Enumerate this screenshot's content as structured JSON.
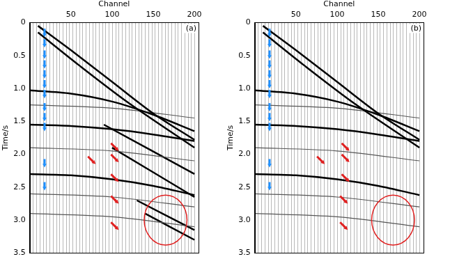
{
  "chart_data": [
    {
      "type": "line",
      "title": "(a)",
      "x_label": "Channel",
      "y_label": "Time/s",
      "xlim": [
        0,
        205
      ],
      "ylim": [
        0,
        3.5
      ],
      "xticks": [
        50,
        100,
        150,
        200
      ],
      "yticks": [
        0,
        {
          "value": 0.5,
          "label": "0.5"
        },
        {
          "value": 1,
          "label": "1.0"
        },
        {
          "value": 1.5,
          "label": "1.5"
        },
        {
          "value": 2,
          "label": "2.0"
        },
        {
          "value": 2.5,
          "label": "2.5"
        },
        {
          "value": 3,
          "label": "3.0"
        },
        {
          "value": 3.5,
          "label": "3.5"
        }
      ],
      "grid": false,
      "traces": [
        4,
        8,
        12,
        16,
        20,
        24,
        28,
        32,
        36,
        40,
        44,
        48,
        52,
        56,
        60,
        64,
        68,
        72,
        76,
        80,
        84,
        88,
        92,
        96,
        100,
        104,
        108,
        112,
        116,
        120,
        124,
        128,
        132,
        136,
        140,
        144,
        148,
        152,
        156,
        160,
        164,
        168,
        172,
        176,
        180,
        184,
        188,
        192,
        196,
        200
      ],
      "series": [
        {
          "color": "#000000",
          "x": [
            10,
            50,
            100,
            150,
            200
          ],
          "values": [
            0.05,
            0.42,
            0.9,
            1.38,
            1.78
          ]
        },
        {
          "color": "#000000",
          "x": [
            10,
            60,
            120,
            200
          ],
          "values": [
            0.15,
            0.65,
            1.22,
            1.9
          ]
        },
        {
          "color": "#000000",
          "x": [
            0,
            50,
            100,
            150,
            200
          ],
          "values": [
            1.03,
            1.08,
            1.2,
            1.4,
            1.65
          ]
        },
        {
          "color": "#000000",
          "x": [
            0,
            50,
            100,
            150,
            200
          ],
          "values": [
            1.55,
            1.57,
            1.62,
            1.7,
            1.8
          ]
        },
        {
          "color": "#000000",
          "x": [
            0,
            50,
            100,
            150,
            200
          ],
          "values": [
            2.3,
            2.32,
            2.38,
            2.48,
            2.62
          ]
        },
        {
          "color": "#555555",
          "x": [
            0,
            100,
            200
          ],
          "values": [
            1.25,
            1.3,
            1.45
          ]
        },
        {
          "color": "#555555",
          "x": [
            0,
            100,
            200
          ],
          "values": [
            1.9,
            1.95,
            2.1
          ]
        },
        {
          "color": "#555555",
          "x": [
            0,
            100,
            200
          ],
          "values": [
            2.6,
            2.65,
            2.8
          ]
        },
        {
          "color": "#555555",
          "x": [
            0,
            100,
            200
          ],
          "values": [
            2.9,
            2.95,
            3.1
          ]
        },
        {
          "color": "#000000",
          "x": [
            90,
            200
          ],
          "values": [
            1.55,
            2.3
          ]
        },
        {
          "color": "#000000",
          "x": [
            100,
            200
          ],
          "values": [
            1.9,
            2.65
          ]
        },
        {
          "color": "#000000",
          "x": [
            130,
            200
          ],
          "values": [
            2.7,
            3.15
          ]
        },
        {
          "color": "#000000",
          "x": [
            140,
            200
          ],
          "values": [
            2.9,
            3.3
          ]
        }
      ],
      "blue_arrows": {
        "color": "#1e90ff",
        "x": [
          18,
          18,
          18,
          18,
          18,
          18,
          18,
          18,
          18,
          18,
          18,
          18
        ],
        "values": [
          0.22,
          0.38,
          0.55,
          0.7,
          0.85,
          1.0,
          1.15,
          1.35,
          1.5,
          1.65,
          2.2,
          2.55
        ]
      },
      "red_arrows": {
        "color": "#e02020",
        "x": [
          108,
          80,
          108,
          108,
          108,
          108
        ],
        "values": [
          1.95,
          2.15,
          2.12,
          2.42,
          2.75,
          3.15
        ]
      },
      "circle": {
        "color": "#e02020",
        "x": 165,
        "y": 3.0,
        "rx": 26,
        "ry": 0.38
      }
    },
    {
      "type": "line",
      "title": "(b)",
      "x_label": "Channel",
      "y_label": "Time/s",
      "xlim": [
        0,
        205
      ],
      "ylim": [
        0,
        3.5
      ],
      "xticks": [
        50,
        100,
        150,
        200
      ],
      "yticks": [
        0,
        {
          "value": 0.5,
          "label": "0.5"
        },
        {
          "value": 1,
          "label": "1.0"
        },
        {
          "value": 1.5,
          "label": "1.5"
        },
        {
          "value": 2,
          "label": "2.0"
        },
        {
          "value": 2.5,
          "label": "2.5"
        },
        {
          "value": 3,
          "label": "3.0"
        },
        {
          "value": 3.5,
          "label": "3.5"
        }
      ],
      "grid": false,
      "traces": [
        4,
        8,
        12,
        16,
        20,
        24,
        28,
        32,
        36,
        40,
        44,
        48,
        52,
        56,
        60,
        64,
        68,
        72,
        76,
        80,
        84,
        88,
        92,
        96,
        100,
        104,
        108,
        112,
        116,
        120,
        124,
        128,
        132,
        136,
        140,
        144,
        148,
        152,
        156,
        160,
        164,
        168,
        172,
        176,
        180,
        184,
        188,
        192,
        196,
        200
      ],
      "series": [
        {
          "color": "#000000",
          "x": [
            10,
            50,
            100,
            150,
            200
          ],
          "values": [
            0.05,
            0.42,
            0.9,
            1.38,
            1.78
          ]
        },
        {
          "color": "#000000",
          "x": [
            10,
            60,
            120,
            200
          ],
          "values": [
            0.15,
            0.65,
            1.22,
            1.9
          ]
        },
        {
          "color": "#000000",
          "x": [
            0,
            50,
            100,
            150,
            200
          ],
          "values": [
            1.03,
            1.08,
            1.2,
            1.4,
            1.65
          ]
        },
        {
          "color": "#000000",
          "x": [
            0,
            50,
            100,
            150,
            200
          ],
          "values": [
            1.55,
            1.57,
            1.62,
            1.7,
            1.8
          ]
        },
        {
          "color": "#000000",
          "x": [
            0,
            50,
            100,
            150,
            200
          ],
          "values": [
            2.3,
            2.32,
            2.38,
            2.48,
            2.62
          ]
        },
        {
          "color": "#555555",
          "x": [
            0,
            100,
            200
          ],
          "values": [
            1.25,
            1.3,
            1.45
          ]
        },
        {
          "color": "#555555",
          "x": [
            0,
            100,
            200
          ],
          "values": [
            1.9,
            1.95,
            2.1
          ]
        },
        {
          "color": "#555555",
          "x": [
            0,
            100,
            200
          ],
          "values": [
            2.6,
            2.65,
            2.8
          ]
        },
        {
          "color": "#555555",
          "x": [
            0,
            100,
            200
          ],
          "values": [
            2.9,
            2.95,
            3.1
          ]
        }
      ],
      "blue_arrows": {
        "color": "#1e90ff",
        "x": [
          18,
          18,
          18,
          18,
          18,
          18,
          18,
          18,
          18,
          18,
          18,
          18
        ],
        "values": [
          0.22,
          0.38,
          0.55,
          0.7,
          0.85,
          1.0,
          1.15,
          1.35,
          1.5,
          1.65,
          2.2,
          2.55
        ]
      },
      "red_arrows": {
        "color": "#e02020",
        "x": [
          115,
          85,
          115,
          115,
          113,
          113
        ],
        "values": [
          1.95,
          2.15,
          2.12,
          2.42,
          2.75,
          3.15
        ]
      },
      "circle": {
        "color": "#e02020",
        "x": 168,
        "y": 3.0,
        "rx": 26,
        "ry": 0.38
      }
    }
  ]
}
